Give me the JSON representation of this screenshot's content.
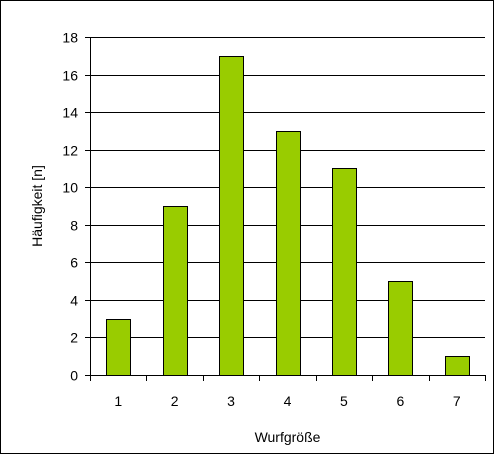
{
  "chart_data": {
    "type": "bar",
    "categories": [
      "1",
      "2",
      "3",
      "4",
      "5",
      "6",
      "7"
    ],
    "values": [
      3,
      9,
      17,
      13,
      11,
      5,
      1
    ],
    "xlabel": "Wurfgröße",
    "ylabel": "Häufigkeit [n]",
    "ylim": [
      0,
      18
    ],
    "yticks": [
      0,
      2,
      4,
      6,
      8,
      10,
      12,
      14,
      16,
      18
    ],
    "grid": true,
    "bar_color": "#99cc00",
    "bar_edge_color": "#000000"
  }
}
